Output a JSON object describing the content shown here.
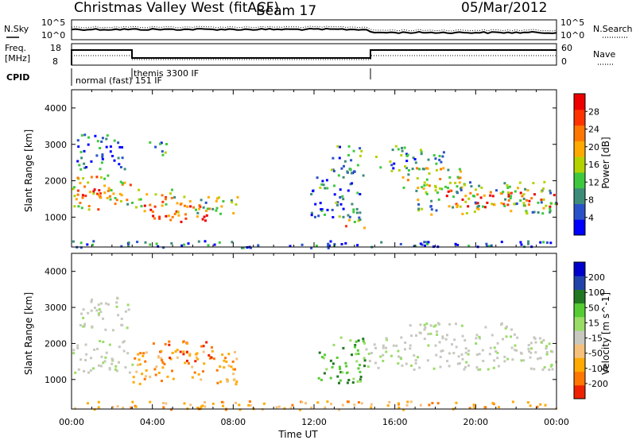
{
  "header": {
    "title": "Christmas Valley West (fitACF)",
    "beam": "Beam 17",
    "date": "05/Mar/2012"
  },
  "top_panels": {
    "nsky_label": "N.Sky",
    "nsky_ticks": [
      "10^5",
      "10^0"
    ],
    "nsearch_label": "N.Search",
    "nsearch_ticks": [
      "10^5",
      "10^0"
    ],
    "freq_label_1": "Freq.",
    "freq_label_2": "[MHz]",
    "freq_ticks": [
      "18",
      "8"
    ],
    "nave_label": "Nave",
    "nave_ticks": [
      "60",
      "0"
    ],
    "cpid_label": "CPID",
    "cpid_mode_1": "normal (fast) 151 IF",
    "cpid_mode_2": "themis 3300 IF"
  },
  "chart_data": [
    {
      "type": "heatmap",
      "name": "power",
      "ylabel": "Slant Range [km]",
      "xlabel": "",
      "x_ticks": [
        "00:00",
        "04:00",
        "08:00",
        "12:00",
        "16:00",
        "20:00",
        "00:00"
      ],
      "y_ticks": [
        "1000",
        "2000",
        "3000",
        "4000"
      ],
      "xlim_hours": [
        0,
        24
      ],
      "ylim_km": [
        180,
        4500
      ],
      "colorbar": {
        "label": "Power [dB]",
        "ticks": [
          "4",
          "8",
          "12",
          "16",
          "20",
          "24",
          "28"
        ],
        "colors": [
          "#0000ff",
          "#2a52c8",
          "#3d8c7a",
          "#3ec83e",
          "#b4d200",
          "#ffaa00",
          "#ff7700",
          "#ff3300",
          "#ee0000"
        ]
      },
      "scatter_regions": [
        {
          "t0": 0.0,
          "t1": 2.0,
          "r0": 1450,
          "r1": 1800,
          "level": 0.88
        },
        {
          "t0": 0.0,
          "t1": 3.0,
          "r0": 1200,
          "r1": 2200,
          "level": 0.55
        },
        {
          "t0": 0.2,
          "t1": 2.8,
          "r0": 2300,
          "r1": 3300,
          "level": 0.2
        },
        {
          "t0": 2.8,
          "t1": 5.0,
          "r0": 1300,
          "r1": 1800,
          "level": 0.6
        },
        {
          "t0": 3.5,
          "t1": 7.0,
          "r0": 900,
          "r1": 1400,
          "level": 0.8
        },
        {
          "t0": 5.0,
          "t1": 8.2,
          "r0": 1000,
          "r1": 1600,
          "level": 0.45
        },
        {
          "t0": 3.8,
          "t1": 4.8,
          "r0": 2600,
          "r1": 3100,
          "level": 0.25
        },
        {
          "t0": 11.8,
          "t1": 14.5,
          "r0": 1000,
          "r1": 2400,
          "level": 0.25
        },
        {
          "t0": 12.8,
          "t1": 14.3,
          "r0": 2300,
          "r1": 3000,
          "level": 0.25
        },
        {
          "t0": 13.5,
          "t1": 14.5,
          "r0": 700,
          "r1": 1100,
          "level": 0.55
        },
        {
          "t0": 15.0,
          "t1": 18.5,
          "r0": 2300,
          "r1": 3000,
          "level": 0.3
        },
        {
          "t0": 16.2,
          "t1": 19.5,
          "r0": 1800,
          "r1": 2400,
          "level": 0.55
        },
        {
          "t0": 18.5,
          "t1": 21.5,
          "r0": 1300,
          "r1": 1800,
          "level": 0.85
        },
        {
          "t0": 21.5,
          "t1": 24.0,
          "r0": 1300,
          "r1": 1700,
          "level": 0.9
        },
        {
          "t0": 17.0,
          "t1": 24.0,
          "r0": 1100,
          "r1": 2000,
          "level": 0.4
        },
        {
          "t0": 0.0,
          "t1": 24.0,
          "r0": 180,
          "r1": 380,
          "level": 0.15
        }
      ]
    },
    {
      "type": "heatmap",
      "name": "velocity",
      "ylabel": "Slant Range [km]",
      "xlabel": "Time UT",
      "x_ticks": [
        "00:00",
        "04:00",
        "08:00",
        "12:00",
        "16:00",
        "20:00",
        "00:00"
      ],
      "y_ticks": [
        "1000",
        "2000",
        "3000",
        "4000"
      ],
      "xlim_hours": [
        0,
        24
      ],
      "ylim_km": [
        180,
        4500
      ],
      "colorbar": {
        "label": "Velocity [m s^-1]",
        "ticks": [
          "200",
          "100",
          "50",
          "15",
          "-15",
          "-50",
          "-100",
          "-200"
        ],
        "colors": [
          "#0000cc",
          "#2244aa",
          "#227722",
          "#55cc33",
          "#99dd66",
          "#c8c8c0",
          "#f5c07a",
          "#ffaa00",
          "#ff7700",
          "#ee2200"
        ]
      },
      "scatter_regions": [
        {
          "t0": 0.0,
          "t1": 3.0,
          "r0": 1200,
          "r1": 2100,
          "cls": "gray"
        },
        {
          "t0": 0.3,
          "t1": 2.8,
          "r0": 2400,
          "r1": 3300,
          "cls": "gray"
        },
        {
          "t0": 3.0,
          "t1": 8.2,
          "r0": 900,
          "r1": 1800,
          "cls": "orange"
        },
        {
          "t0": 4.0,
          "t1": 7.0,
          "r0": 1500,
          "r1": 2100,
          "cls": "red"
        },
        {
          "t0": 12.0,
          "t1": 14.5,
          "r0": 900,
          "r1": 2200,
          "cls": "green"
        },
        {
          "t0": 14.5,
          "t1": 24.0,
          "r0": 1300,
          "r1": 2200,
          "cls": "gray"
        },
        {
          "t0": 16.5,
          "t1": 22.0,
          "r0": 2200,
          "r1": 2600,
          "cls": "gray"
        },
        {
          "t0": 0.0,
          "t1": 24.0,
          "r0": 180,
          "r1": 420,
          "cls": "orange"
        }
      ]
    }
  ]
}
